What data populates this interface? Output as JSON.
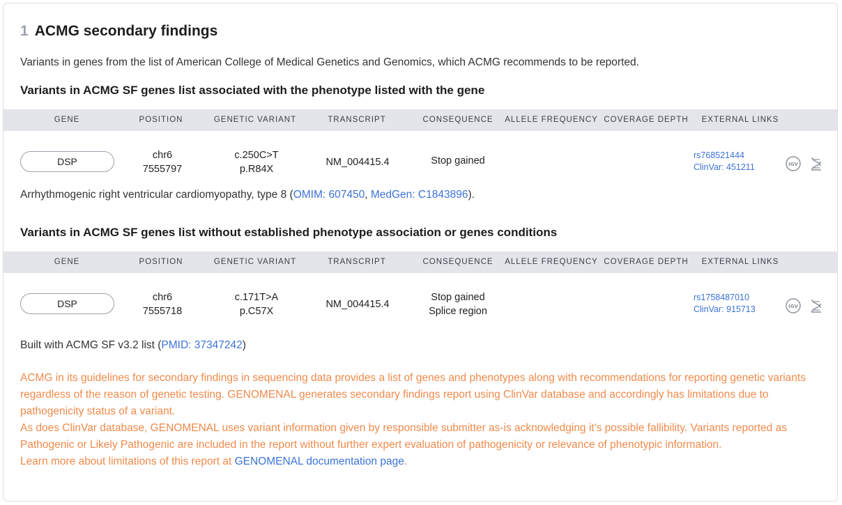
{
  "section": {
    "number": "1",
    "title": "ACMG secondary findings",
    "intro": "Variants in genes from the list of American College of Medical Genetics and Genomics, which ACMG recommends to be reported."
  },
  "columns": [
    "GENE",
    "POSITION",
    "GENETIC VARIANT",
    "TRANSCRIPT",
    "CONSEQUENCE",
    "ALLELE FREQUENCY",
    "COVERAGE DEPTH",
    "EXTERNAL LINKS"
  ],
  "group1": {
    "heading": "Variants in ACMG SF genes list associated with the phenotype listed with the gene",
    "row": {
      "gene": "DSP",
      "chrom": "chr6",
      "pos": "7555797",
      "cdna": "c.250C>T",
      "protein": "p.R84X",
      "transcript": "NM_004415.4",
      "consequence1": "Stop gained",
      "consequence2": "",
      "rs": "rs768521444",
      "clinvar": "ClinVar: 451211"
    },
    "phenotype": {
      "text": "Arrhythmogenic right ventricular cardiomyopathy, type 8 (",
      "omim": "OMIM: 607450",
      "sep": ", ",
      "medgen": "MedGen: C1843896",
      "end": ")."
    }
  },
  "group2": {
    "heading": "Variants in ACMG SF genes list without established phenotype association or genes conditions",
    "row": {
      "gene": "DSP",
      "chrom": "chr6",
      "pos": "7555718",
      "cdna": "c.171T>A",
      "protein": "p.C57X",
      "transcript": "NM_004415.4",
      "consequence1": "Stop gained",
      "consequence2": "Splice region",
      "rs": "rs1758487010",
      "clinvar": "ClinVar: 915713"
    }
  },
  "built": {
    "text": "Built with ACMG SF v3.2 list (",
    "pmid": "PMID: 37347242",
    "end": ")"
  },
  "disclaimer": {
    "p1": "ACMG in its guidelines for secondary findings in sequencing data provides a list of genes and phenotypes along with recommendations for reporting genetic variants regardless of the reason of genetic testing. GENOMENAL generates secondary findings report using ClinVar database and accordingly has limitations due to pathogenicity status of a variant.",
    "p2": "As does ClinVar database, GENOMENAL uses variant information given by responsible submitter as-is acknowledging it's possible fallibility. Variants reported as Pathogenic or Likely Pathogenic are included in the report without further expert evaluation of pathogenicity or relevance of phenotypic information.",
    "p3_text": "Learn more about limitations of this report at ",
    "p3_link": "GENOMENAL documentation page",
    "p3_end": "."
  },
  "icons": {
    "igv": "igv-icon",
    "genome": "dna-icon"
  },
  "colors": {
    "link": "#3b73d6",
    "warning": "#f08a4b",
    "header_bg": "#e3e5ea"
  }
}
